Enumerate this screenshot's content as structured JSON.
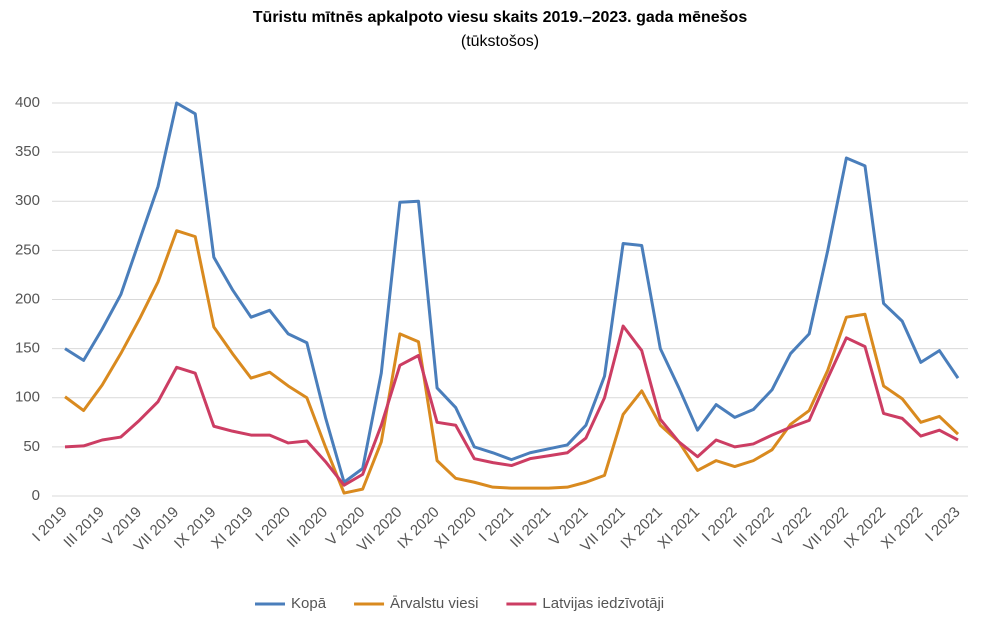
{
  "chart_data": {
    "type": "line",
    "title": "Tūristu mītnēs apkalpoto viesu skaits 2019.–2023. gada mēnešos",
    "subtitle": "(tūkstošos)",
    "categories": [
      "I 2019",
      null,
      "III 2019",
      null,
      "V 2019",
      null,
      "VII 2019",
      null,
      "IX 2019",
      null,
      "XI 2019",
      null,
      "I 2020",
      null,
      "III 2020",
      null,
      "V 2020",
      null,
      "VII 2020",
      null,
      "IX 2020",
      null,
      "XI 2020",
      null,
      "I 2021",
      null,
      "III 2021",
      null,
      "V 2021",
      null,
      "VII 2021",
      null,
      "IX 2021",
      null,
      "XI 2021",
      null,
      "I 2022",
      null,
      "III 2022",
      null,
      "V 2022",
      null,
      "VII 2022",
      null,
      "IX 2022",
      null,
      "XI 2022",
      null,
      "I 2023"
    ],
    "series": [
      {
        "name": "Kopā",
        "color": "#4a7ebb",
        "values": [
          150,
          138,
          170,
          205,
          260,
          315,
          400,
          389,
          243,
          210,
          182,
          189,
          165,
          156,
          80,
          14,
          28,
          125,
          299,
          300,
          110,
          90,
          50,
          44,
          37,
          44,
          48,
          52,
          72,
          122,
          257,
          255,
          150,
          110,
          67,
          93,
          80,
          88,
          108,
          145,
          165,
          250,
          344,
          336,
          196,
          178,
          136,
          148,
          120
        ]
      },
      {
        "name": "Ārvalstu viesi",
        "color": "#d98a1f",
        "values": [
          101,
          87,
          113,
          145,
          180,
          218,
          270,
          264,
          172,
          145,
          120,
          126,
          112,
          100,
          50,
          3,
          7,
          55,
          165,
          157,
          36,
          18,
          14,
          9,
          8,
          8,
          8,
          9,
          14,
          21,
          83,
          107,
          72,
          55,
          26,
          36,
          30,
          36,
          47,
          73,
          87,
          128,
          182,
          185,
          112,
          99,
          75,
          81,
          63
        ]
      },
      {
        "name": "Latvijas iedzīvotāji",
        "color": "#cc3d63",
        "values": [
          50,
          51,
          57,
          60,
          77,
          96,
          131,
          125,
          71,
          66,
          62,
          62,
          54,
          56,
          35,
          11,
          22,
          72,
          133,
          143,
          75,
          72,
          38,
          34,
          31,
          38,
          41,
          44,
          59,
          100,
          173,
          148,
          78,
          55,
          40,
          57,
          50,
          53,
          62,
          70,
          77,
          120,
          161,
          152,
          84,
          79,
          61,
          67,
          57
        ]
      }
    ],
    "ylim": [
      0,
      400
    ],
    "yticks": [
      0,
      50,
      100,
      150,
      200,
      250,
      300,
      350,
      400
    ],
    "grid": true,
    "legend": "bottom"
  }
}
